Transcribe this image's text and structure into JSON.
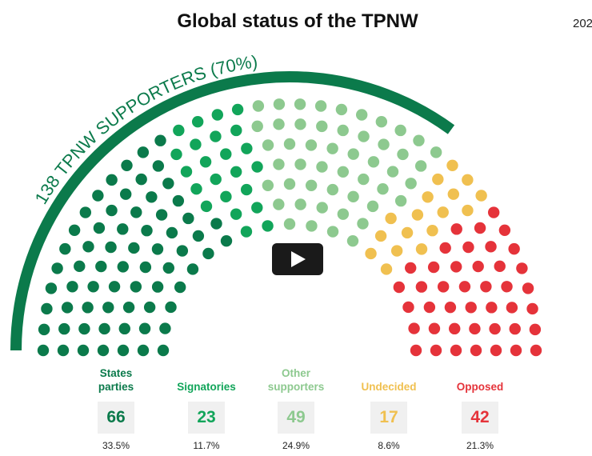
{
  "chart_data": {
    "type": "parliament",
    "title": "Global status of the TPNW",
    "corner_text": "202",
    "annotation": "138 TPNW SUPPORTERS (70%)",
    "annotation_color": "#0b7a4b",
    "series": [
      {
        "name": "States parties",
        "color": "#0b7a4b",
        "value": 66,
        "share_label": "33.5%"
      },
      {
        "name": "Signatories",
        "color": "#12a55a",
        "value": 23,
        "share_label": "11.7%"
      },
      {
        "name": "Other supporters",
        "color": "#8dc98f",
        "value": 49,
        "share_label": "24.9%"
      },
      {
        "name": "Undecided",
        "color": "#f0c050",
        "value": 17,
        "share_label": "8.6%"
      },
      {
        "name": "Opposed",
        "color": "#e5333a",
        "value": 42,
        "share_label": "21.3%"
      }
    ]
  }
}
